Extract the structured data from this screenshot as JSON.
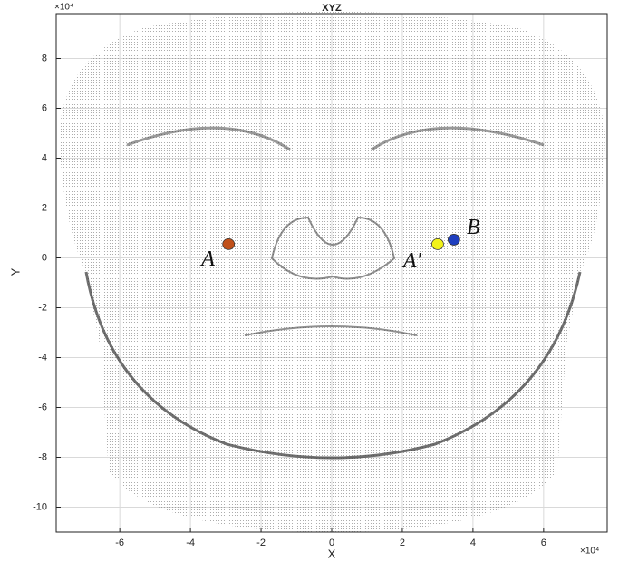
{
  "chart_data": {
    "type": "scatter",
    "title": "XYZ",
    "x_label": "X",
    "y_label": "Y",
    "x_scale_label": "×10⁴",
    "y_scale_label": "×10⁴",
    "xlim": [
      -7.8,
      7.8
    ],
    "ylim": [
      -11,
      9.8
    ],
    "xticks": [
      -6,
      -4,
      -2,
      0,
      2,
      4,
      6
    ],
    "yticks": [
      -10,
      -8,
      -6,
      -4,
      -2,
      0,
      2,
      4,
      6,
      8
    ],
    "grid": true,
    "series": [
      {
        "name": "A",
        "color": "#c0501a",
        "x": [
          -2.92
        ],
        "values": [
          0.55
        ]
      },
      {
        "name": "A′",
        "color": "#f2f21a",
        "x": [
          3.0
        ],
        "values": [
          0.55
        ]
      },
      {
        "name": "B",
        "color": "#1f3fbf",
        "x": [
          3.46
        ],
        "values": [
          0.73
        ]
      }
    ]
  }
}
